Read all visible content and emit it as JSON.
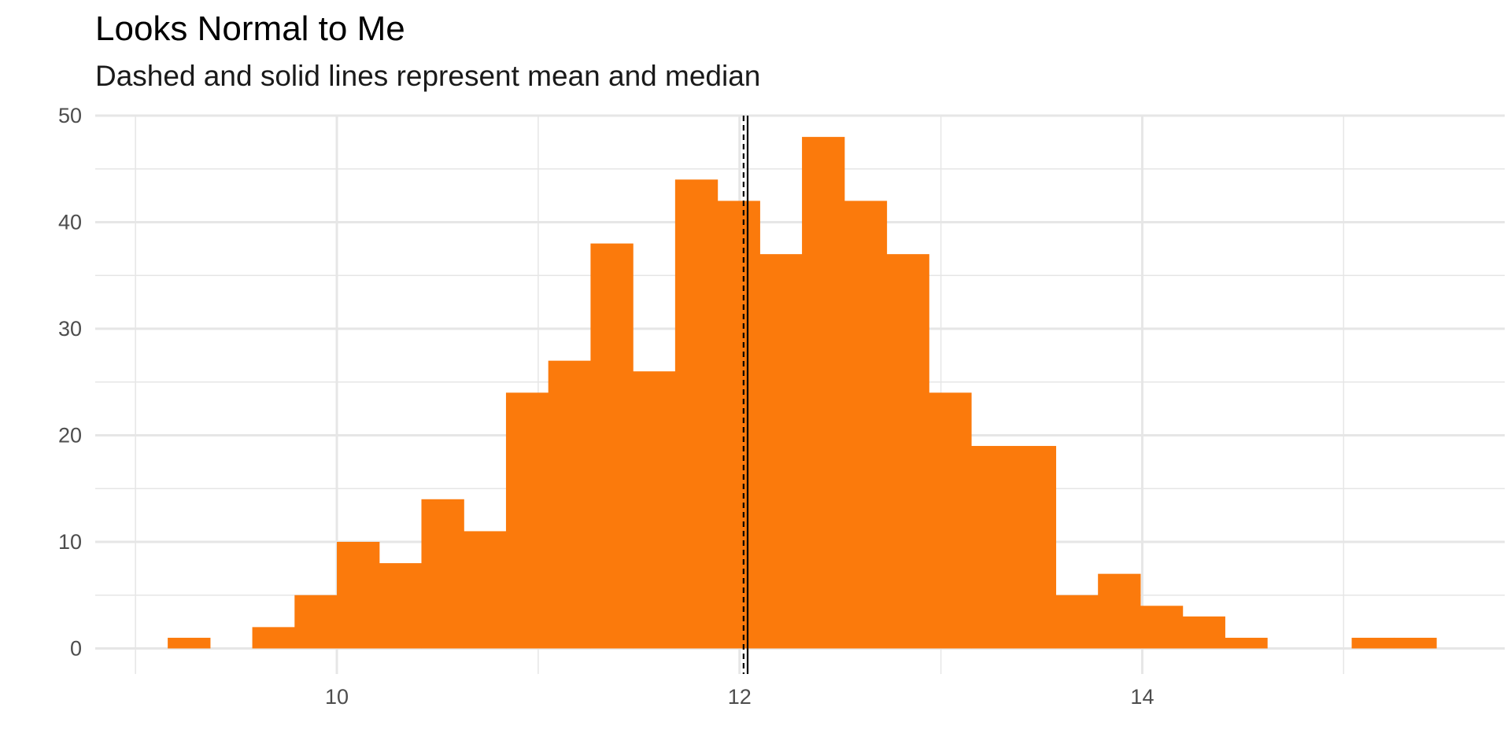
{
  "chart_data": {
    "type": "bar",
    "title": "Looks Normal to Me",
    "subtitle": "Dashed and solid lines represent mean and median",
    "xlabel": "",
    "ylabel": "",
    "bin_width": 0.21,
    "bins": [
      {
        "start": 9.16,
        "count": 1
      },
      {
        "start": 9.37,
        "count": 0
      },
      {
        "start": 9.58,
        "count": 2
      },
      {
        "start": 9.79,
        "count": 5
      },
      {
        "start": 10.0,
        "count": 10
      },
      {
        "start": 10.21,
        "count": 8
      },
      {
        "start": 10.42,
        "count": 14
      },
      {
        "start": 10.63,
        "count": 11
      },
      {
        "start": 10.84,
        "count": 24
      },
      {
        "start": 11.05,
        "count": 27
      },
      {
        "start": 11.26,
        "count": 38
      },
      {
        "start": 11.47,
        "count": 26
      },
      {
        "start": 11.68,
        "count": 44
      },
      {
        "start": 11.89,
        "count": 42
      },
      {
        "start": 12.1,
        "count": 37
      },
      {
        "start": 12.31,
        "count": 48
      },
      {
        "start": 12.52,
        "count": 42
      },
      {
        "start": 12.73,
        "count": 37
      },
      {
        "start": 12.94,
        "count": 24
      },
      {
        "start": 13.15,
        "count": 19
      },
      {
        "start": 13.36,
        "count": 19
      },
      {
        "start": 13.57,
        "count": 5
      },
      {
        "start": 13.78,
        "count": 7
      },
      {
        "start": 13.99,
        "count": 4
      },
      {
        "start": 14.2,
        "count": 3
      },
      {
        "start": 14.41,
        "count": 1
      },
      {
        "start": 14.62,
        "count": 0
      },
      {
        "start": 14.83,
        "count": 0
      },
      {
        "start": 15.04,
        "count": 1
      },
      {
        "start": 15.25,
        "count": 1
      }
    ],
    "mean": 12.02,
    "median": 12.04,
    "xlim": [
      8.8,
      15.8
    ],
    "ylim": [
      -2.4,
      50
    ],
    "x_ticks": [
      10,
      12,
      14
    ],
    "y_ticks": [
      0,
      10,
      20,
      30,
      40,
      50
    ],
    "grid": true,
    "bar_color": "#FB7A0C",
    "grid_color": "#e6e6e6",
    "line_color": "#000000"
  }
}
